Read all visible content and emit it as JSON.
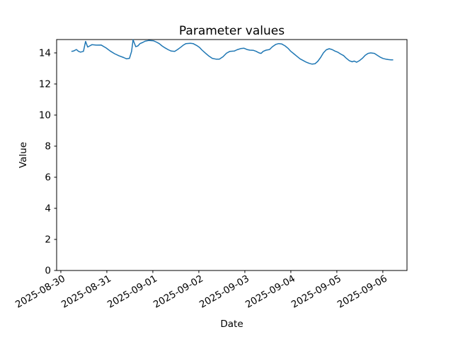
{
  "figure": {
    "background": "#ffffff"
  },
  "chart_data": {
    "type": "line",
    "title": "Parameter values",
    "xlabel": "Date",
    "ylabel": "Value",
    "grid": false,
    "legend": false,
    "line_color": "#1f77b4",
    "axis_color": "#000000",
    "x_axis": {
      "unit": "hours since 2025-08-30 00:00",
      "tick_labels": [
        "2025-08-30",
        "2025-08-31",
        "2025-09-01",
        "2025-09-02",
        "2025-09-03",
        "2025-09-04",
        "2025-09-05",
        "2025-09-06"
      ],
      "tick_hours": [
        0,
        24,
        48,
        72,
        96,
        120,
        144,
        168
      ],
      "tick_label_rotation_deg": 30,
      "range_hours": [
        -2.2,
        180.6
      ]
    },
    "y_axis": {
      "ticks": [
        0,
        2,
        4,
        6,
        8,
        10,
        12,
        14
      ],
      "range": [
        0,
        14.86
      ]
    },
    "series": [
      {
        "points_hours_value": [
          [
            5.5,
            14.1
          ],
          [
            6.6,
            14.12
          ],
          [
            8.1,
            14.22
          ],
          [
            9.2,
            14.1
          ],
          [
            10.3,
            14.05
          ],
          [
            11.8,
            14.1
          ],
          [
            12.9,
            14.74
          ],
          [
            14.0,
            14.38
          ],
          [
            15.1,
            14.45
          ],
          [
            16.2,
            14.53
          ],
          [
            18.5,
            14.5
          ],
          [
            21.0,
            14.51
          ],
          [
            23.6,
            14.32
          ],
          [
            25.8,
            14.12
          ],
          [
            28.0,
            13.95
          ],
          [
            30.3,
            13.82
          ],
          [
            32.8,
            13.7
          ],
          [
            34.3,
            13.62
          ],
          [
            35.8,
            13.65
          ],
          [
            36.9,
            14.1
          ],
          [
            37.7,
            14.84
          ],
          [
            39.1,
            14.4
          ],
          [
            40.2,
            14.45
          ],
          [
            41.3,
            14.6
          ],
          [
            42.8,
            14.68
          ],
          [
            43.9,
            14.75
          ],
          [
            45.8,
            14.8
          ],
          [
            48.4,
            14.78
          ],
          [
            49.8,
            14.7
          ],
          [
            51.3,
            14.6
          ],
          [
            52.8,
            14.45
          ],
          [
            54.3,
            14.33
          ],
          [
            56.1,
            14.2
          ],
          [
            57.6,
            14.12
          ],
          [
            59.4,
            14.1
          ],
          [
            60.9,
            14.22
          ],
          [
            62.4,
            14.35
          ],
          [
            63.9,
            14.5
          ],
          [
            65.3,
            14.6
          ],
          [
            67.6,
            14.62
          ],
          [
            69.0,
            14.6
          ],
          [
            70.9,
            14.48
          ],
          [
            72.4,
            14.35
          ],
          [
            73.5,
            14.2
          ],
          [
            75.3,
            14.0
          ],
          [
            77.2,
            13.8
          ],
          [
            79.0,
            13.65
          ],
          [
            80.9,
            13.6
          ],
          [
            82.7,
            13.6
          ],
          [
            84.6,
            13.75
          ],
          [
            86.4,
            13.98
          ],
          [
            88.2,
            14.1
          ],
          [
            90.5,
            14.12
          ],
          [
            91.9,
            14.2
          ],
          [
            93.8,
            14.28
          ],
          [
            95.6,
            14.3
          ],
          [
            97.1,
            14.22
          ],
          [
            98.6,
            14.18
          ],
          [
            100.4,
            14.17
          ],
          [
            101.9,
            14.1
          ],
          [
            103.4,
            14.0
          ],
          [
            104.5,
            13.97
          ],
          [
            105.6,
            14.1
          ],
          [
            107.1,
            14.18
          ],
          [
            108.9,
            14.22
          ],
          [
            110.4,
            14.4
          ],
          [
            112.2,
            14.55
          ],
          [
            113.7,
            14.6
          ],
          [
            115.2,
            14.58
          ],
          [
            117.0,
            14.45
          ],
          [
            118.5,
            14.3
          ],
          [
            120.0,
            14.1
          ],
          [
            121.5,
            13.95
          ],
          [
            123.0,
            13.8
          ],
          [
            124.8,
            13.62
          ],
          [
            126.6,
            13.5
          ],
          [
            128.1,
            13.4
          ],
          [
            129.6,
            13.33
          ],
          [
            131.1,
            13.28
          ],
          [
            132.6,
            13.3
          ],
          [
            134.0,
            13.45
          ],
          [
            135.5,
            13.7
          ],
          [
            137.0,
            14.0
          ],
          [
            138.5,
            14.2
          ],
          [
            140.0,
            14.27
          ],
          [
            141.5,
            14.22
          ],
          [
            143.0,
            14.12
          ],
          [
            144.4,
            14.05
          ],
          [
            146.0,
            13.93
          ],
          [
            147.5,
            13.83
          ],
          [
            149.0,
            13.65
          ],
          [
            150.5,
            13.5
          ],
          [
            152.0,
            13.43
          ],
          [
            153.0,
            13.48
          ],
          [
            154.3,
            13.4
          ],
          [
            155.8,
            13.5
          ],
          [
            157.3,
            13.65
          ],
          [
            158.8,
            13.85
          ],
          [
            160.3,
            13.97
          ],
          [
            161.7,
            14.0
          ],
          [
            163.6,
            13.97
          ],
          [
            165.1,
            13.85
          ],
          [
            166.6,
            13.73
          ],
          [
            168.1,
            13.64
          ],
          [
            169.5,
            13.6
          ],
          [
            171.0,
            13.57
          ],
          [
            172.3,
            13.55
          ],
          [
            173.4,
            13.55
          ]
        ]
      }
    ]
  }
}
